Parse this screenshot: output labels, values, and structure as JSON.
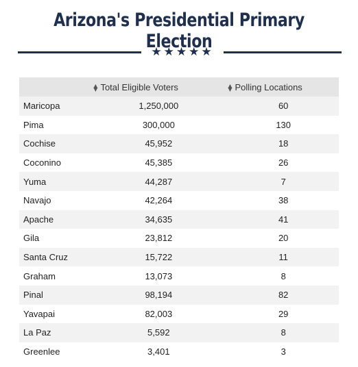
{
  "title": "Arizona's Presidential Primary Election",
  "divider": {
    "stars": "★★★★★"
  },
  "chart_data": {
    "type": "table",
    "columns": [
      "",
      "Total Eligible Voters",
      "Polling Locations"
    ],
    "rows": [
      {
        "county": "Maricopa",
        "voters": "1,250,000",
        "polling": "60"
      },
      {
        "county": "Pima",
        "voters": "300,000",
        "polling": "130"
      },
      {
        "county": "Cochise",
        "voters": "45,952",
        "polling": "18"
      },
      {
        "county": "Coconino",
        "voters": "45,385",
        "polling": "26"
      },
      {
        "county": "Yuma",
        "voters": "44,287",
        "polling": "7"
      },
      {
        "county": "Navajo",
        "voters": "42,264",
        "polling": "38"
      },
      {
        "county": "Apache",
        "voters": "34,635",
        "polling": "41"
      },
      {
        "county": "Gila",
        "voters": "23,812",
        "polling": "20"
      },
      {
        "county": "Santa Cruz",
        "voters": "15,722",
        "polling": "11"
      },
      {
        "county": "Graham",
        "voters": "13,073",
        "polling": "8"
      },
      {
        "county": "Pinal",
        "voters": "98,194",
        "polling": "82"
      },
      {
        "county": "Yavapai",
        "voters": "82,003",
        "polling": "29"
      },
      {
        "county": "La Paz",
        "voters": "5,592",
        "polling": "8"
      },
      {
        "county": "Greenlee",
        "voters": "3,401",
        "polling": "3"
      }
    ]
  },
  "colors": {
    "title": "#1f2f4e",
    "header_bg": "#e5e5e5",
    "stripe_bg": "#f2f2f2"
  }
}
